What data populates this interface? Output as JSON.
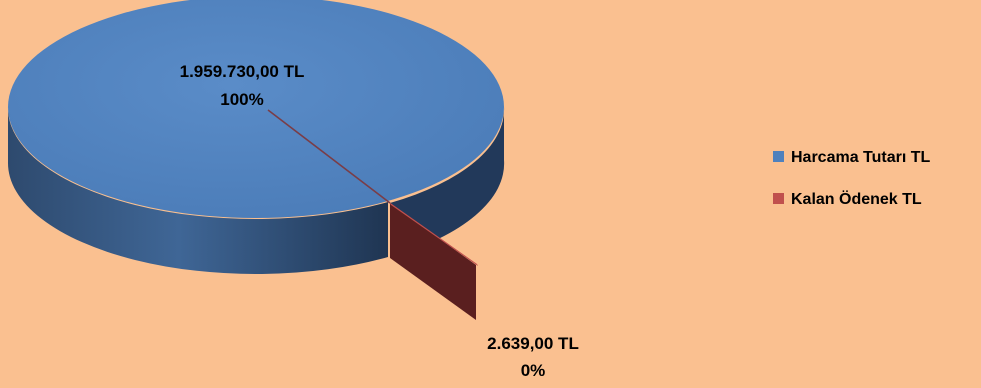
{
  "chart_data": {
    "type": "pie",
    "title": "",
    "slices": [
      {
        "name": "Harcama Tutarı TL",
        "value": 1959730.0,
        "value_label": "1.959.730,00 TL",
        "percent_label": "100%",
        "color": "#4F81BD"
      },
      {
        "name": "Kalan Ödenek TL",
        "value": 2639.0,
        "value_label": "2.639,00 TL",
        "percent_label": "0%",
        "color": "#C0504D"
      }
    ],
    "style": "3d-exploded",
    "legend_position": "right"
  },
  "colors": {
    "background": "#FAC090",
    "label_text": "#000000"
  }
}
